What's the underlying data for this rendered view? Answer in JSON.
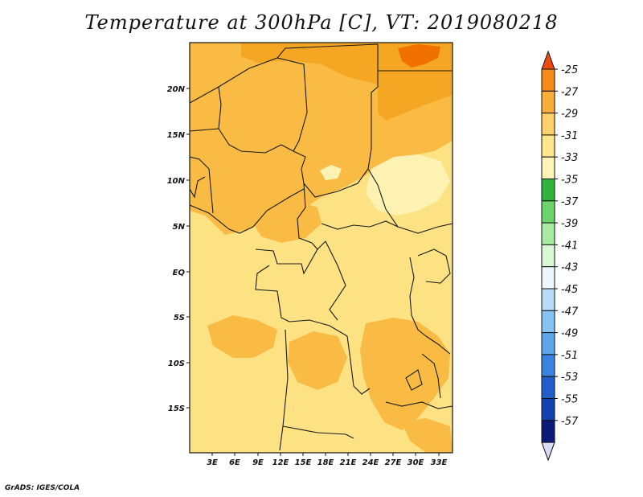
{
  "title": "Temperature at 300hPa [C], VT: 2019080218",
  "credit": "GrADS: IGES/COLA",
  "map": {
    "lat_labels": [
      "20N",
      "15N",
      "10N",
      "5N",
      "EQ",
      "5S",
      "10S",
      "15S"
    ],
    "lon_labels": [
      "3E",
      "6E",
      "9E",
      "12E",
      "15E",
      "18E",
      "21E",
      "24E",
      "27E",
      "30E",
      "33E"
    ],
    "colors": {
      "c27_25": "#f07000",
      "c29_27": "#f5a623",
      "c31_29": "#f9bb43",
      "c33_31": "#fde283",
      "c35_33": "#fef2b3",
      "border": "#1a1a1a"
    }
  },
  "colorbar": {
    "labels": [
      "-25",
      "-27",
      "-29",
      "-31",
      "-33",
      "-35",
      "-37",
      "-39",
      "-41",
      "-43",
      "-45",
      "-47",
      "-49",
      "-51",
      "-53",
      "-55",
      "-57"
    ],
    "colors": [
      "#ec4a0e",
      "#f58c18",
      "#f9ae3a",
      "#fcd16a",
      "#fde68c",
      "#fff4b8",
      "#2fb53e",
      "#6cd46a",
      "#a7eba3",
      "#d9f8d6",
      "#ebf7fc",
      "#b6dcf7",
      "#86c3f2",
      "#5ea6ec",
      "#3a84e1",
      "#1f5ecb",
      "#1242ad",
      "#0c1a7a",
      "#d8dcf5"
    ]
  }
}
